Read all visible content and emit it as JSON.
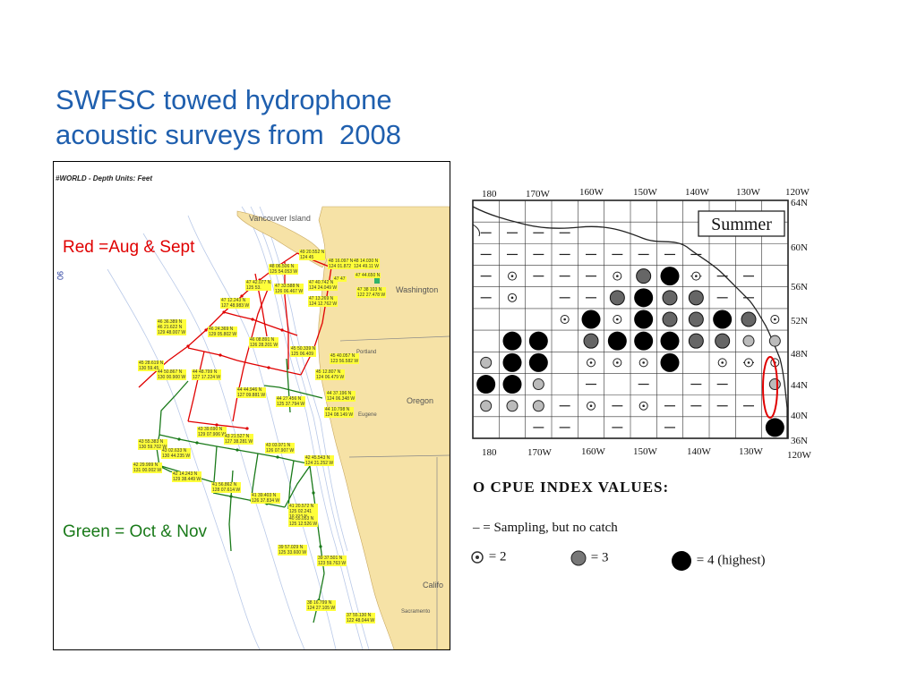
{
  "slide": {
    "title_line1": "SWFSC towed hydrophone",
    "title_line2": "acoustic surveys from  2008",
    "colors": {
      "title": "#1f5fae",
      "red_track": "#e00000",
      "green_track": "#1a7a1a",
      "highlight": "#ffff3a"
    }
  },
  "track_map": {
    "header": "#WORLD - Depth Units: Feet",
    "red_note": "Red =Aug & Sept",
    "green_note": "Green = Oct & Nov",
    "places": {
      "vancouver": "Vancouver Island",
      "washington": "Washington",
      "oregon": "Oregon",
      "california": "Califo",
      "portland": "Portland",
      "eugene": "Eugene",
      "sacramento": "Sacramento"
    },
    "coords": [
      "49 20.552 N\n124 45",
      "48 16.097 N\n124 01.872",
      "48 14.030 N\n124 49.11 W",
      "47 44.650 N",
      "48 06.506 N\n125 54.053 W",
      "47 42.077 N\n125 53.",
      "47 33.588 N\n126 06.467 W",
      "47 40.742 N\n124 24.049 W",
      "47 47",
      "47 38 103 N\n122 27.478 W",
      "47 12.243 N\n127 48.983 W",
      "47 13.269 N\n124 12.762 W",
      "46 36.389 N\n46 21.622 N\n129 48.007 W",
      "46 24.369 N\n129 05.802 W",
      "46 08.891 N\n126 28.201 W",
      "45 50.339 N\n125 06.409",
      "45 28.619 N\n130 59.45",
      "44 50.867 N\n130 00.900 W",
      "44 48.799 N\n127 17.224 W",
      "45 40.057 N\n123 56.582 W",
      "45 12.807 N\n124 06.479 W",
      "44 44.946 N\n127 09.881 W",
      "44 27.456 N\n125 37.794 W",
      "44 37.196 N\n124 06.348 W",
      "44 10.798 N\n124 08.149 W",
      "43 55.383 N\n130 59.702 W",
      "43 39.690 N\n129 07.906 W",
      "43 21.527 N\n127 38.281 W",
      "43 03.971 N\n126 07.907 W",
      "42 45.543 N\n124 21.252 W",
      "43 02.633 N\n130 44.235 W",
      "42 29.999 N\n131 00.002 W",
      "42 14.243 N\n129 38.449 W",
      "41 56.862 N\n128 07.614 W",
      "41 39.403 N\n126 37.834 W",
      "41 20.572 N\n125 02.241\n10.310 N\n124 08.149 W",
      "40 55.053 N\n125 12.526 W",
      "39 57.029 N\n125 33.600 W",
      "39 37.501 N\n123 59.763 W",
      "38 16.799 N\n124 27.105 W",
      "37 55.130 N\n122 48.044 W"
    ]
  },
  "cpue_chart": {
    "panel_title": "Summer",
    "top_longitudes": [
      "180",
      "170W",
      "160W",
      "150W",
      "140W",
      "130W",
      "120W"
    ],
    "bottom_longitudes": [
      "180",
      "170W",
      "160W",
      "150W",
      "140W",
      "130W",
      "120W"
    ],
    "latitudes": [
      "64N",
      "60N",
      "56N",
      "52N",
      "48N",
      "44N",
      "40N",
      "36N"
    ],
    "highlight_color": "#e00000"
  },
  "legend": {
    "title": "O  CPUE  INDEX  VALUES:",
    "line": "–  =  Sampling, but no catch",
    "items": [
      {
        "symbol": "cpue-2-icon",
        "label": "=  2"
      },
      {
        "symbol": "cpue-3-icon",
        "label": "=  3"
      },
      {
        "symbol": "cpue-4-icon",
        "label": "=  4 (highest)"
      }
    ]
  }
}
